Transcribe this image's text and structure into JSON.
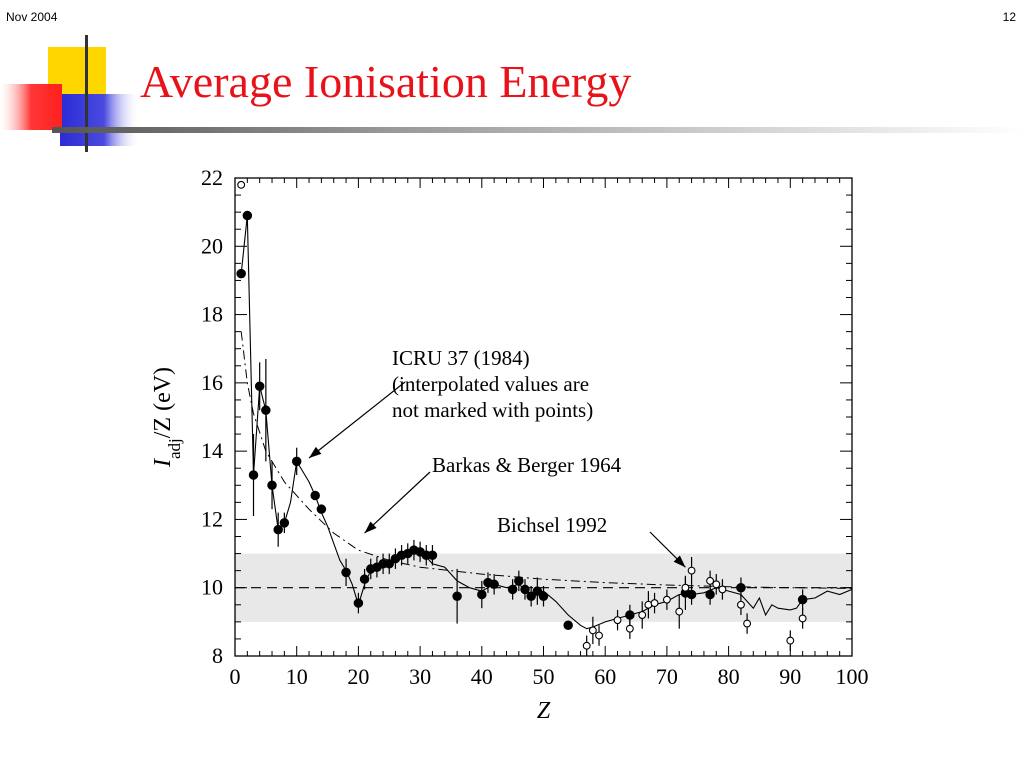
{
  "slide": {
    "date": "Nov 2004",
    "page_number": "12",
    "title": "Average Ionisation Energy"
  },
  "colors": {
    "title": "#e8121a",
    "deco_yellow": "#ffd700",
    "deco_red": "#ff2020",
    "deco_blue": "#2b2bd6"
  },
  "chart_data": {
    "type": "scatter",
    "xlabel": "Z",
    "ylabel_main": "I",
    "ylabel_sub": "adj",
    "ylabel_rest": "/Z (eV)",
    "xlim": [
      0,
      100
    ],
    "ylim": [
      8,
      22
    ],
    "xticks": [
      0,
      10,
      20,
      30,
      40,
      50,
      60,
      70,
      80,
      90,
      100
    ],
    "yticks": [
      8,
      10,
      12,
      14,
      16,
      18,
      20,
      22
    ],
    "band": {
      "low": 9,
      "high": 11,
      "color": "#e8e8e8"
    },
    "reference_line": 10,
    "annotations": [
      {
        "lines": [
          "ICRU 37 (1984)",
          "(interpolated values are",
          "not marked with points)"
        ],
        "arrow_to": [
          12,
          13.8
        ]
      },
      {
        "lines": [
          "Barkas & Berger 1964"
        ],
        "arrow_to": [
          21,
          11.6
        ]
      },
      {
        "lines": [
          "Bichsel 1992"
        ],
        "arrow_to": [
          73,
          10.6
        ]
      }
    ],
    "series": [
      {
        "style": "line-solid",
        "points": [
          [
            1,
            19.2
          ],
          [
            2,
            20.9
          ],
          [
            3,
            13.3
          ],
          [
            4,
            15.9
          ],
          [
            5,
            15.2
          ],
          [
            6,
            13
          ],
          [
            7,
            11.7
          ],
          [
            8,
            11.9
          ],
          [
            9,
            12.5
          ],
          [
            10,
            13.7
          ],
          [
            11,
            13.4
          ],
          [
            12,
            13.1
          ],
          [
            13,
            12.7
          ],
          [
            14,
            12.2
          ],
          [
            15,
            11.8
          ],
          [
            16,
            11.3
          ],
          [
            17,
            10.8
          ],
          [
            18,
            10.5
          ],
          [
            19,
            10.1
          ],
          [
            20,
            9.5
          ],
          [
            21,
            10.1
          ],
          [
            22,
            10.5
          ],
          [
            23,
            10.6
          ],
          [
            24,
            10.7
          ],
          [
            25,
            10.7
          ],
          [
            26,
            10.9
          ],
          [
            27,
            10.9
          ],
          [
            28,
            11
          ],
          [
            29,
            11.1
          ],
          [
            30,
            11.1
          ],
          [
            31,
            10.9
          ],
          [
            32,
            10.7
          ],
          [
            34,
            10.6
          ],
          [
            36,
            10.2
          ],
          [
            38,
            10
          ],
          [
            40,
            9.9
          ],
          [
            42,
            10.1
          ],
          [
            44,
            10
          ],
          [
            46,
            10.1
          ],
          [
            48,
            9.8
          ],
          [
            50,
            9.9
          ],
          [
            52,
            9.6
          ],
          [
            54,
            9.2
          ],
          [
            56,
            8.9
          ],
          [
            57,
            8.8
          ],
          [
            58,
            8.85
          ],
          [
            60,
            9
          ],
          [
            62,
            9.1
          ],
          [
            64,
            9.2
          ],
          [
            66,
            9.3
          ],
          [
            68,
            9.5
          ],
          [
            70,
            9.6
          ],
          [
            72,
            9.8
          ],
          [
            74,
            9.8
          ],
          [
            76,
            9.85
          ],
          [
            78,
            10
          ],
          [
            80,
            9.9
          ],
          [
            82,
            9.8
          ],
          [
            84,
            9.4
          ],
          [
            85,
            9.7
          ],
          [
            86,
            9.2
          ],
          [
            87,
            9.5
          ],
          [
            88,
            9.4
          ],
          [
            90,
            9.35
          ],
          [
            91,
            9.4
          ],
          [
            92,
            9.65
          ],
          [
            94,
            9.7
          ],
          [
            96,
            9.9
          ],
          [
            98,
            9.8
          ],
          [
            100,
            9.95
          ]
        ]
      },
      {
        "style": "line-dashdot",
        "points": [
          [
            1,
            17.5
          ],
          [
            2,
            16
          ],
          [
            3,
            15.1
          ],
          [
            5,
            14
          ],
          [
            8,
            13.1
          ],
          [
            12,
            12.3
          ],
          [
            16,
            11.6
          ],
          [
            20,
            11.1
          ],
          [
            25,
            10.8
          ],
          [
            30,
            10.6
          ],
          [
            40,
            10.4
          ],
          [
            50,
            10.25
          ],
          [
            60,
            10.15
          ],
          [
            70,
            10.08
          ],
          [
            80,
            10.03
          ],
          [
            90,
            10
          ],
          [
            100,
            9.98
          ]
        ]
      },
      {
        "style": "filled",
        "points": [
          {
            "x": 1,
            "y": 19.2
          },
          {
            "x": 2,
            "y": 20.9
          },
          {
            "x": 3,
            "y": 13.3,
            "err": 1.2
          },
          {
            "x": 4,
            "y": 15.9,
            "err": 0.7
          },
          {
            "x": 5,
            "y": 15.2,
            "err": 1.5
          },
          {
            "x": 6,
            "y": 13,
            "err": 0.7
          },
          {
            "x": 7,
            "y": 11.7,
            "err": 0.5
          },
          {
            "x": 8,
            "y": 11.9,
            "err": 0.3
          },
          {
            "x": 10,
            "y": 13.7,
            "err": 0.4
          },
          {
            "x": 13,
            "y": 12.7
          },
          {
            "x": 14,
            "y": 12.3
          },
          {
            "x": 18,
            "y": 10.45,
            "err": 0.4
          },
          {
            "x": 20,
            "y": 9.55,
            "err": 0.3
          },
          {
            "x": 21,
            "y": 10.25,
            "err": 0.3
          },
          {
            "x": 22,
            "y": 10.55,
            "err": 0.3
          },
          {
            "x": 23,
            "y": 10.6,
            "err": 0.3
          },
          {
            "x": 24,
            "y": 10.7,
            "err": 0.3
          },
          {
            "x": 25,
            "y": 10.7,
            "err": 0.3
          },
          {
            "x": 26,
            "y": 10.85,
            "err": 0.3
          },
          {
            "x": 27,
            "y": 10.95,
            "err": 0.3
          },
          {
            "x": 28,
            "y": 11.0,
            "err": 0.3
          },
          {
            "x": 29,
            "y": 11.1,
            "err": 0.3
          },
          {
            "x": 30,
            "y": 11.05,
            "err": 0.3
          },
          {
            "x": 31,
            "y": 10.95,
            "err": 0.3
          },
          {
            "x": 32,
            "y": 10.95,
            "err": 0.3
          },
          {
            "x": 36,
            "y": 9.75,
            "err": 0.8
          },
          {
            "x": 40,
            "y": 9.8,
            "err": 0.4
          },
          {
            "x": 41,
            "y": 10.15,
            "err": 0.3
          },
          {
            "x": 42,
            "y": 10.1,
            "err": 0.3
          },
          {
            "x": 45,
            "y": 9.95,
            "err": 0.3
          },
          {
            "x": 46,
            "y": 10.2,
            "err": 0.3
          },
          {
            "x": 47,
            "y": 9.95,
            "err": 0.3
          },
          {
            "x": 48,
            "y": 9.75,
            "err": 0.3
          },
          {
            "x": 49,
            "y": 9.9,
            "err": 0.4
          },
          {
            "x": 50,
            "y": 9.75,
            "err": 0.3
          },
          {
            "x": 54,
            "y": 8.9
          },
          {
            "x": 64,
            "y": 9.2,
            "err": 0.3
          },
          {
            "x": 73,
            "y": 9.85,
            "err": 0.5
          },
          {
            "x": 74,
            "y": 9.8,
            "err": 0.3
          },
          {
            "x": 77,
            "y": 9.8,
            "err": 0.3
          },
          {
            "x": 82,
            "y": 10.0,
            "err": 0.3
          },
          {
            "x": 92,
            "y": 9.65,
            "err": 0.3
          }
        ]
      },
      {
        "style": "open",
        "points": [
          {
            "x": 1,
            "y": 21.8
          },
          {
            "x": 57,
            "y": 8.3,
            "err": 0.3
          },
          {
            "x": 58,
            "y": 8.75,
            "err": 0.4
          },
          {
            "x": 59,
            "y": 8.6,
            "err": 0.3
          },
          {
            "x": 62,
            "y": 9.05,
            "err": 0.3
          },
          {
            "x": 64,
            "y": 8.8,
            "err": 0.3
          },
          {
            "x": 66,
            "y": 9.2,
            "err": 0.4
          },
          {
            "x": 67,
            "y": 9.5,
            "err": 0.4
          },
          {
            "x": 68,
            "y": 9.55,
            "err": 0.3
          },
          {
            "x": 70,
            "y": 9.65,
            "err": 0.3
          },
          {
            "x": 72,
            "y": 9.3,
            "err": 0.5
          },
          {
            "x": 73,
            "y": 10.0,
            "err": 0.3
          },
          {
            "x": 74,
            "y": 10.5,
            "err": 0.4
          },
          {
            "x": 77,
            "y": 10.2,
            "err": 0.3
          },
          {
            "x": 78,
            "y": 10.1,
            "err": 0.3
          },
          {
            "x": 79,
            "y": 9.95,
            "err": 0.3
          },
          {
            "x": 82,
            "y": 9.5,
            "err": 0.3
          },
          {
            "x": 83,
            "y": 8.95,
            "err": 0.3
          },
          {
            "x": 90,
            "y": 8.45,
            "err": 0.3
          },
          {
            "x": 92,
            "y": 9.1,
            "err": 0.3
          }
        ]
      }
    ]
  }
}
